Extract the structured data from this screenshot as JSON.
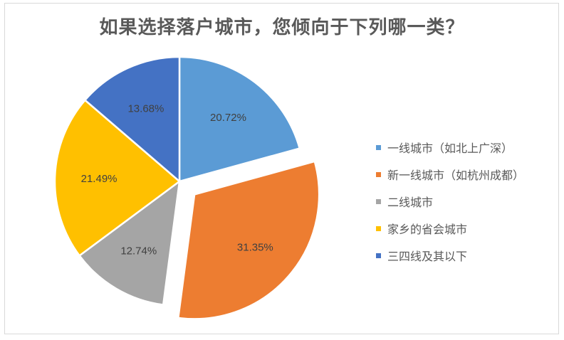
{
  "chart_data": {
    "type": "pie",
    "title": "如果选择落户城市，您倾向于下列哪一类？",
    "categories": [
      "一线城市（如北上广深）",
      "新一线城市（如杭州成都）",
      "二线城市",
      "家乡的省会城市",
      "三四线及其以下"
    ],
    "values": [
      20.72,
      31.35,
      12.74,
      21.49,
      13.68
    ],
    "labels": [
      "20.72%",
      "31.35%",
      "12.74%",
      "21.49%",
      "13.68%"
    ],
    "colors": [
      "#5b9bd5",
      "#ed7d31",
      "#a5a5a5",
      "#ffc000",
      "#4472c4"
    ],
    "exploded": [
      false,
      true,
      false,
      false,
      false
    ],
    "legend_position": "right"
  }
}
